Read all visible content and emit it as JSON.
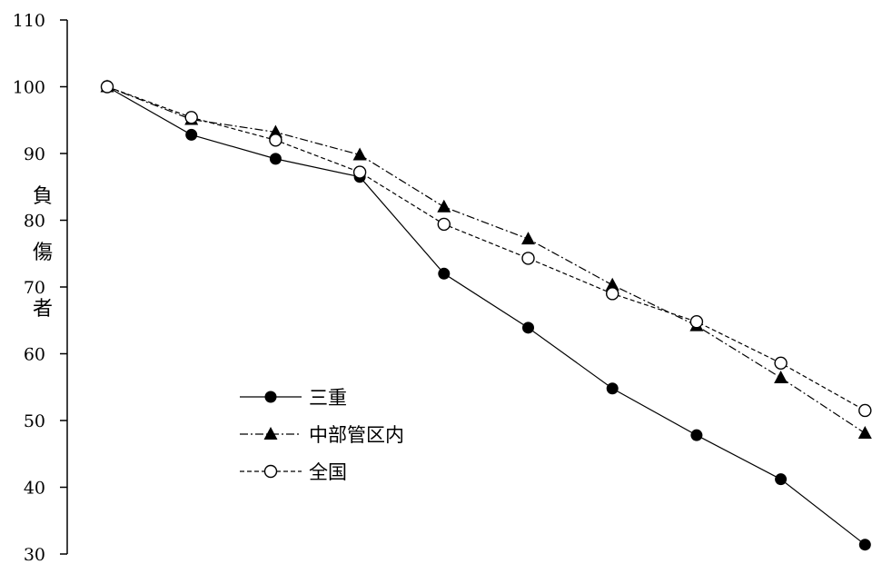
{
  "chart_data": {
    "type": "line",
    "title": "",
    "xlabel": "",
    "ylabel": "負傷者",
    "ylim": [
      30,
      110
    ],
    "yticks": [
      30,
      40,
      50,
      60,
      70,
      80,
      90,
      100,
      110
    ],
    "x": [
      1,
      2,
      3,
      4,
      5,
      6,
      7,
      8,
      9,
      10
    ],
    "legend_position": "center-left",
    "grid": false,
    "series": [
      {
        "name": "三重",
        "values": [
          100,
          92.8,
          89.2,
          86.5,
          72,
          63.9,
          54.8,
          47.8,
          41.2,
          31.4
        ],
        "marker": "filled-circle",
        "line_style": "solid",
        "color": "#000000"
      },
      {
        "name": "中部管区内",
        "values": [
          100,
          95.1,
          93.2,
          89.8,
          82,
          77.2,
          70.3,
          64.2,
          56.4,
          48.1
        ],
        "marker": "filled-triangle",
        "line_style": "dash-dot",
        "color": "#000000"
      },
      {
        "name": "全国",
        "values": [
          100,
          95.4,
          92,
          87.2,
          79.4,
          74.3,
          69,
          64.8,
          58.6,
          51.5
        ],
        "marker": "open-circle",
        "line_style": "dashed",
        "color": "#000000"
      }
    ]
  }
}
